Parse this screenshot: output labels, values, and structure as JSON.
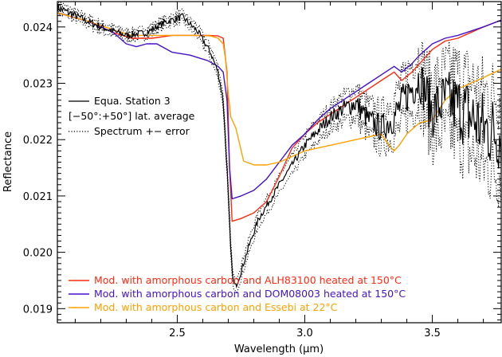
{
  "chart_data": {
    "type": "line",
    "title": "",
    "xlabel": "Wavelength (μm)",
    "ylabel": "Reflectance",
    "xlim": [
      2.03,
      3.77
    ],
    "ylim": [
      0.01875,
      0.02445
    ],
    "x_ticks": [
      2.5,
      3.0,
      3.5
    ],
    "x_tick_labels": [
      "2.5",
      "3.0",
      "3.5"
    ],
    "y_ticks": [
      0.019,
      0.02,
      0.021,
      0.022,
      0.023,
      0.024
    ],
    "y_tick_labels": [
      "0.019",
      "0.020",
      "0.021",
      "0.022",
      "0.023",
      "0.024"
    ],
    "grid": false,
    "legends": {
      "top_left": [
        {
          "label": "Equa. Station 3",
          "style": "solid",
          "color": "#000000"
        },
        {
          "label": "[−50°:+50°] lat. average",
          "style": "none",
          "color": "#000000"
        },
        {
          "label": "Spectrum +− error",
          "style": "dotted",
          "color": "#000000"
        }
      ],
      "bottom_left": [
        {
          "label": "Mod. with amorphous carbon and ALH83100 heated at 150°C",
          "color": "#ff2a10"
        },
        {
          "label": "Mod. with amorphous carbon and DOM08003 heated at 150°C",
          "color": "#4411cc"
        },
        {
          "label": "Mod. with amorphous carbon and Essebi at 22°C",
          "color": "#ffa000"
        }
      ]
    },
    "series": [
      {
        "name": "Equa. Station 3",
        "color": "#000000",
        "style": "solid-noisy",
        "x": [
          2.03,
          2.1,
          2.2,
          2.3,
          2.38,
          2.45,
          2.52,
          2.58,
          2.63,
          2.66,
          2.68,
          2.695,
          2.71,
          2.72,
          2.73,
          2.75,
          2.78,
          2.82,
          2.86,
          2.9,
          2.95,
          3.0,
          3.05,
          3.1,
          3.15,
          3.2,
          3.25,
          3.3,
          3.35,
          3.4,
          3.45,
          3.5,
          3.55,
          3.6,
          3.65,
          3.7,
          3.77
        ],
        "y": [
          0.02435,
          0.0242,
          0.024,
          0.02385,
          0.0239,
          0.02408,
          0.02418,
          0.02392,
          0.02355,
          0.0232,
          0.0227,
          0.0215,
          0.02,
          0.01945,
          0.0194,
          0.01965,
          0.0201,
          0.0206,
          0.0209,
          0.0212,
          0.02155,
          0.0219,
          0.02215,
          0.0224,
          0.02255,
          0.02265,
          0.02235,
          0.0222,
          0.0224,
          0.0228,
          0.0231,
          0.0225,
          0.0227,
          0.0226,
          0.0224,
          0.0222,
          0.0221
        ],
        "noise_amplitude": [
          8e-05,
          7e-05,
          7e-05,
          6e-05,
          6e-05,
          6e-05,
          6e-05,
          6e-05,
          6e-05,
          6e-05,
          6e-05,
          6e-05,
          6e-05,
          5e-05,
          5e-05,
          5e-05,
          5e-05,
          6e-05,
          6e-05,
          6e-05,
          6e-05,
          8e-05,
          0.0001,
          0.00012,
          0.00015,
          0.0002,
          0.00022,
          0.00025,
          0.0003,
          0.00035,
          0.0004,
          0.0005,
          0.00055,
          0.0006,
          0.0007,
          0.0007,
          0.0007
        ]
      },
      {
        "name": "Spectrum +− error",
        "color": "#000000",
        "style": "dotted-envelope",
        "offset_from": "Equa. Station 3",
        "x": [
          2.03,
          2.5,
          2.6,
          2.7,
          2.8,
          2.9,
          3.0,
          3.1,
          3.2,
          3.3,
          3.4,
          3.5,
          3.6,
          3.77
        ],
        "error": [
          8e-05,
          8e-05,
          0.0001,
          0.00012,
          0.00013,
          0.00015,
          0.00018,
          0.0002,
          0.00025,
          0.0003,
          0.0004,
          0.0005,
          0.0006,
          0.0007
        ]
      },
      {
        "name": "Mod. with amorphous carbon and ALH83100 heated at 150°C",
        "color": "#ff2a10",
        "style": "solid",
        "x": [
          2.03,
          2.15,
          2.25,
          2.32,
          2.4,
          2.48,
          2.55,
          2.62,
          2.66,
          2.68,
          2.695,
          2.705,
          2.715,
          2.75,
          2.8,
          2.85,
          2.9,
          2.95,
          3.0,
          3.05,
          3.1,
          3.15,
          3.2,
          3.25,
          3.3,
          3.35,
          3.38,
          3.42,
          3.45,
          3.5,
          3.55,
          3.6,
          3.7,
          3.77
        ],
        "y": [
          0.02425,
          0.0241,
          0.0239,
          0.0238,
          0.0238,
          0.02385,
          0.02385,
          0.02385,
          0.02384,
          0.0238,
          0.0232,
          0.0215,
          0.02055,
          0.0206,
          0.0207,
          0.0209,
          0.02135,
          0.02185,
          0.0221,
          0.0223,
          0.02245,
          0.0226,
          0.02275,
          0.0229,
          0.02305,
          0.0232,
          0.02305,
          0.0232,
          0.02335,
          0.0236,
          0.02375,
          0.0238,
          0.024,
          0.02412
        ]
      },
      {
        "name": "Mod. with amorphous carbon and DOM08003 heated at 150°C",
        "color": "#4411cc",
        "style": "solid",
        "x": [
          2.03,
          2.15,
          2.25,
          2.3,
          2.34,
          2.38,
          2.42,
          2.48,
          2.55,
          2.62,
          2.66,
          2.68,
          2.695,
          2.705,
          2.715,
          2.75,
          2.8,
          2.85,
          2.9,
          2.95,
          3.0,
          3.05,
          3.1,
          3.15,
          3.2,
          3.25,
          3.3,
          3.35,
          3.38,
          3.42,
          3.45,
          3.5,
          3.55,
          3.6,
          3.7,
          3.77
        ],
        "y": [
          0.02425,
          0.0241,
          0.0239,
          0.0237,
          0.02365,
          0.0237,
          0.0237,
          0.02355,
          0.0235,
          0.0234,
          0.0233,
          0.0232,
          0.0227,
          0.0215,
          0.02095,
          0.021,
          0.0211,
          0.0213,
          0.0216,
          0.0219,
          0.0221,
          0.02235,
          0.02255,
          0.0227,
          0.02285,
          0.023,
          0.02315,
          0.0233,
          0.0232,
          0.02335,
          0.0235,
          0.0237,
          0.0238,
          0.02385,
          0.024,
          0.02412
        ]
      },
      {
        "name": "Mod. with amorphous carbon and Essebi at 22°C",
        "color": "#ffa000",
        "style": "solid",
        "x": [
          2.03,
          2.15,
          2.25,
          2.32,
          2.4,
          2.5,
          2.58,
          2.63,
          2.66,
          2.68,
          2.69,
          2.7,
          2.71,
          2.73,
          2.76,
          2.8,
          2.85,
          2.9,
          2.95,
          3.0,
          3.05,
          3.1,
          3.15,
          3.2,
          3.25,
          3.3,
          3.33,
          3.35,
          3.37,
          3.4,
          3.45,
          3.5,
          3.55,
          3.6,
          3.65,
          3.7,
          3.77
        ],
        "y": [
          0.02425,
          0.0241,
          0.02395,
          0.02385,
          0.02385,
          0.02385,
          0.02385,
          0.02384,
          0.0238,
          0.0237,
          0.0234,
          0.0228,
          0.0224,
          0.0222,
          0.02162,
          0.02155,
          0.02155,
          0.0216,
          0.0217,
          0.0218,
          0.02185,
          0.0219,
          0.02195,
          0.022,
          0.02205,
          0.0221,
          0.0219,
          0.0218,
          0.0219,
          0.0221,
          0.0223,
          0.02235,
          0.0227,
          0.0229,
          0.023,
          0.0231,
          0.02325
        ]
      }
    ]
  }
}
